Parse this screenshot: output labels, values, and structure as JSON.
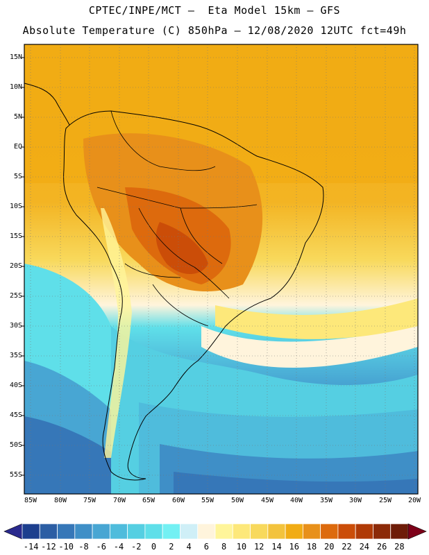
{
  "title": {
    "line1": "CPTEC/INPE/MCT –  Eta Model 15km – GFS",
    "line2": "Absolute Temperature (C) 850hPa – 12/08/2020 12UTC fct=49h"
  },
  "map": {
    "region": "South America",
    "variable": "Absolute Temperature (C) 850hPa",
    "lat_labels": [
      "15N",
      "10N",
      "5N",
      "EQ",
      "5S",
      "10S",
      "15S",
      "20S",
      "25S",
      "30S",
      "35S",
      "40S",
      "45S",
      "50S",
      "55S"
    ],
    "lon_labels": [
      "85W",
      "80W",
      "75W",
      "70W",
      "65W",
      "60W",
      "55W",
      "50W",
      "45W",
      "40W",
      "35W",
      "30W",
      "25W",
      "20W"
    ]
  },
  "colorbar": {
    "labels": [
      "-14",
      "-12",
      "-10",
      "-8",
      "-6",
      "-4",
      "-2",
      "0",
      "2",
      "4",
      "6",
      "8",
      "10",
      "12",
      "14",
      "16",
      "18",
      "20",
      "22",
      "24",
      "26",
      "28"
    ],
    "colors": [
      "#1d3f8e",
      "#2c5ea4",
      "#3677b8",
      "#3f8fc7",
      "#48a6d3",
      "#4fbcdc",
      "#55cfe2",
      "#5fdfe9",
      "#73f0f3",
      "#cfeff7",
      "#fff4dc",
      "#fff59a",
      "#fde87a",
      "#f8d95c",
      "#f3c33d",
      "#f1ac14",
      "#e8901a",
      "#dd6a0d",
      "#cb4d08",
      "#b03a06",
      "#8c2a08",
      "#6e1c08"
    ],
    "under_color": "#2a2a8e",
    "over_color": "#7d0019"
  }
}
